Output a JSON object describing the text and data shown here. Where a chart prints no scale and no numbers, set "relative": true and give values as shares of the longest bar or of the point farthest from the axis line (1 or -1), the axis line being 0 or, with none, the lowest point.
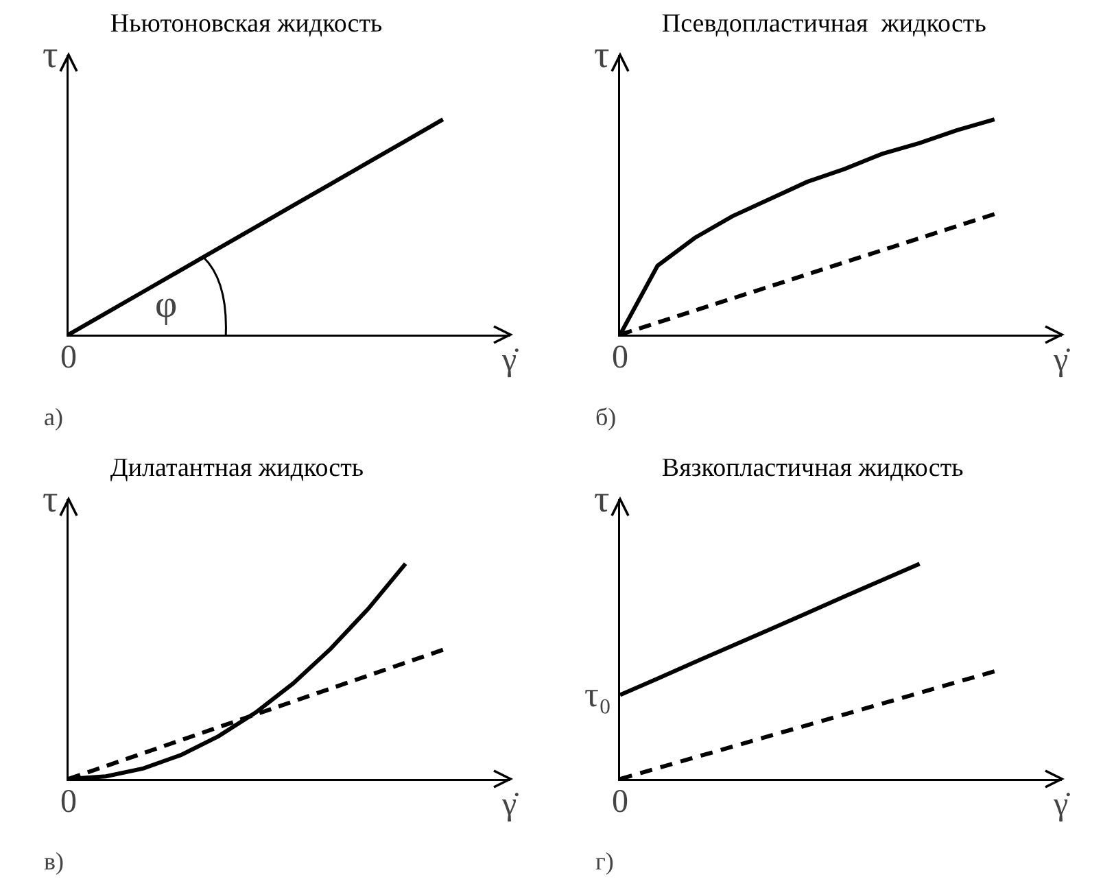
{
  "chart_data": [
    {
      "type": "line",
      "title": "Ньютоновская жидкость",
      "xlabel": "γ̇",
      "ylabel": "τ",
      "relative": true,
      "categories": [
        null,
        null,
        null,
        null,
        null,
        null,
        null,
        null,
        null,
        null,
        null
      ],
      "series": [
        {
          "color": "#000000",
          "line_style": "solid",
          "values": [
            0,
            0.1,
            0.2,
            0.3,
            0.4,
            0.5,
            0.6,
            0.7,
            0.8,
            0.9,
            1
          ]
        }
      ],
      "annotations": [
        "φ",
        "0",
        "а)"
      ]
    },
    {
      "type": "line",
      "title": "Псевдопластичная  жидкость",
      "xlabel": "γ̇",
      "ylabel": "τ",
      "relative": true,
      "categories": [
        null,
        null,
        null,
        null,
        null,
        null,
        null,
        null,
        null,
        null,
        null
      ],
      "series": [
        {
          "color": "#000000",
          "line_style": "solid",
          "values": [
            0,
            0.32,
            0.45,
            0.55,
            0.63,
            0.71,
            0.77,
            0.84,
            0.89,
            0.95,
            1
          ]
        },
        {
          "color": "#000000",
          "line_style": "dashed",
          "values": [
            0,
            0.056,
            0.112,
            0.168,
            0.224,
            0.28,
            0.336,
            0.392,
            0.448,
            0.504,
            0.56
          ]
        }
      ],
      "annotations": [
        "0",
        "б)"
      ]
    },
    {
      "type": "line",
      "title": "Дилатантная жидкость",
      "xlabel": "γ̇",
      "ylabel": "τ",
      "relative": true,
      "categories": [
        null,
        null,
        null,
        null,
        null,
        null,
        null,
        null,
        null,
        null,
        null
      ],
      "series": [
        {
          "color": "#000000",
          "line_style": "solid",
          "values": [
            0,
            0.012,
            0.049,
            0.111,
            0.198,
            0.309,
            0.444,
            0.605,
            0.79,
            1,
            null
          ]
        },
        {
          "color": "#000000",
          "line_style": "dashed",
          "values": [
            0,
            0.06,
            0.12,
            0.18,
            0.24,
            0.3,
            0.36,
            0.42,
            0.48,
            0.54,
            0.6
          ]
        }
      ],
      "annotations": [
        "0",
        "в)"
      ]
    },
    {
      "type": "line",
      "title": "Вязкопластичная жидкость",
      "xlabel": "γ̇",
      "ylabel": "τ",
      "relative": true,
      "categories": [
        null,
        null,
        null,
        null,
        null,
        null,
        null,
        null,
        null,
        null,
        null
      ],
      "series": [
        {
          "color": "#000000",
          "line_style": "solid",
          "values": [
            0.39,
            0.466,
            0.543,
            0.619,
            0.695,
            0.771,
            0.848,
            0.924,
            1,
            null,
            null
          ]
        },
        {
          "color": "#000000",
          "line_style": "dashed",
          "values": [
            0,
            0.05,
            0.1,
            0.15,
            0.2,
            0.25,
            0.3,
            0.35,
            0.4,
            0.45,
            0.5
          ]
        }
      ],
      "annotations": [
        "τ₀",
        "0",
        "г)"
      ]
    }
  ]
}
